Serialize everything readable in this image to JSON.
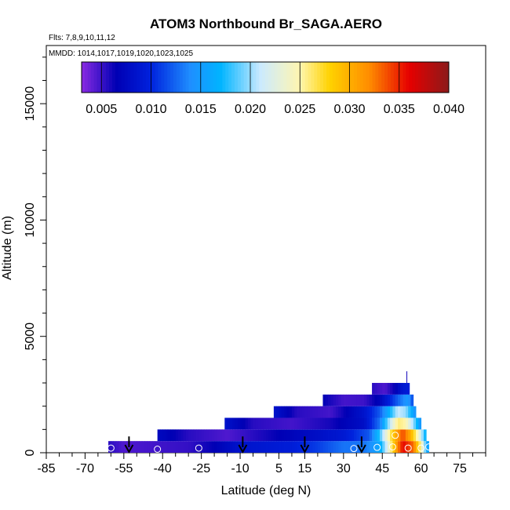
{
  "chart_data": {
    "type": "heatmap",
    "title": "ATOM3 Northbound Br_SAGA.AERO",
    "flights_note": "Flts: 7,8,9,10,11,12",
    "mmdd_note": "MMDD: 1014,1017,1019,1020,1023,1025",
    "xlabel": "Latitude (deg N)",
    "ylabel": "Altitude (m)",
    "xlim": [
      -85,
      85
    ],
    "ylim": [
      0,
      17500
    ],
    "x_ticks": [
      -85,
      -70,
      -55,
      -40,
      -25,
      -10,
      5,
      15,
      30,
      45,
      60,
      75
    ],
    "y_ticks": [
      0,
      5000,
      10000,
      15000
    ],
    "colorbar": {
      "range": [
        0.003,
        0.04
      ],
      "ticks": [
        "0.005",
        "0.010",
        "0.015",
        "0.020",
        "0.025",
        "0.030",
        "0.035",
        "0.040"
      ],
      "tick_values": [
        0.005,
        0.01,
        0.015,
        0.02,
        0.025,
        0.03,
        0.035,
        0.04
      ],
      "stops": [
        {
          "v": 0.003,
          "c": "#8a2be2"
        },
        {
          "v": 0.0065,
          "c": "#0000b4"
        },
        {
          "v": 0.01,
          "c": "#0022dd"
        },
        {
          "v": 0.014,
          "c": "#1f8fff"
        },
        {
          "v": 0.017,
          "c": "#00b4ff"
        },
        {
          "v": 0.021,
          "c": "#cbeaff"
        },
        {
          "v": 0.025,
          "c": "#fff6b0"
        },
        {
          "v": 0.028,
          "c": "#ffd200"
        },
        {
          "v": 0.032,
          "c": "#ff8c00"
        },
        {
          "v": 0.036,
          "c": "#e60000"
        },
        {
          "v": 0.04,
          "c": "#8b1a1a"
        }
      ]
    },
    "layers": [
      {
        "alt_bottom": 0,
        "alt_top": 500,
        "profile": [
          [
            -61,
            0.0055
          ],
          [
            -55,
            0.0045
          ],
          [
            -45,
            0.0048
          ],
          [
            -30,
            0.0052
          ],
          [
            -20,
            0.0065
          ],
          [
            -10,
            0.0085
          ],
          [
            0,
            0.009
          ],
          [
            10,
            0.0095
          ],
          [
            20,
            0.011
          ],
          [
            30,
            0.013
          ],
          [
            38,
            0.013
          ],
          [
            44,
            0.016
          ],
          [
            47,
            0.022
          ],
          [
            50,
            0.03
          ],
          [
            53,
            0.036
          ],
          [
            57,
            0.033
          ],
          [
            60,
            0.025
          ],
          [
            63,
            0.014
          ]
        ]
      },
      {
        "alt_bottom": 500,
        "alt_top": 1000,
        "profile": [
          [
            -42,
            0.0075
          ],
          [
            -30,
            0.0055
          ],
          [
            -15,
            0.0045
          ],
          [
            0,
            0.006
          ],
          [
            15,
            0.0075
          ],
          [
            30,
            0.009
          ],
          [
            40,
            0.012
          ],
          [
            44,
            0.018
          ],
          [
            47,
            0.024
          ],
          [
            50,
            0.03
          ],
          [
            53,
            0.034
          ],
          [
            56,
            0.03
          ],
          [
            59,
            0.024
          ],
          [
            62,
            0.016
          ]
        ]
      },
      {
        "alt_bottom": 1000,
        "alt_top": 1500,
        "profile": [
          [
            -16,
            0.0085
          ],
          [
            -5,
            0.0055
          ],
          [
            10,
            0.0048
          ],
          [
            25,
            0.006
          ],
          [
            38,
            0.008
          ],
          [
            44,
            0.013
          ],
          [
            48,
            0.021
          ],
          [
            51,
            0.026
          ],
          [
            54,
            0.025
          ],
          [
            57,
            0.02
          ],
          [
            60,
            0.014
          ]
        ]
      },
      {
        "alt_bottom": 1500,
        "alt_top": 2000,
        "profile": [
          [
            3,
            0.0085
          ],
          [
            12,
            0.0055
          ],
          [
            25,
            0.0048
          ],
          [
            38,
            0.0085
          ],
          [
            44,
            0.012
          ],
          [
            48,
            0.017
          ],
          [
            51,
            0.021
          ],
          [
            54,
            0.02
          ],
          [
            58,
            0.014
          ]
        ]
      },
      {
        "alt_bottom": 2000,
        "alt_top": 2500,
        "profile": [
          [
            22,
            0.0065
          ],
          [
            30,
            0.0048
          ],
          [
            38,
            0.005
          ],
          [
            44,
            0.007
          ],
          [
            48,
            0.01
          ],
          [
            52,
            0.013
          ],
          [
            55,
            0.015
          ],
          [
            57,
            0.011
          ]
        ]
      },
      {
        "alt_bottom": 2500,
        "alt_top": 3000,
        "profile": [
          [
            41,
            0.0055
          ],
          [
            46,
            0.0045
          ],
          [
            50,
            0.0065
          ],
          [
            53,
            0.009
          ],
          [
            55.5,
            0.0095
          ]
        ]
      }
    ],
    "spike": {
      "lat": 54.5,
      "alt_bottom": 3000,
      "alt_top": 3500,
      "value": 0.006
    },
    "arrows_lat": [
      -53,
      -9,
      15,
      37
    ],
    "arrow_alt_top": 700,
    "circles": [
      {
        "lat": -60,
        "alt": 200,
        "value": 0.006
      },
      {
        "lat": -42,
        "alt": 150,
        "value": 0.005
      },
      {
        "lat": -26,
        "alt": 200,
        "value": 0.005
      },
      {
        "lat": 34,
        "alt": 180,
        "value": 0.01
      },
      {
        "lat": 43,
        "alt": 230,
        "value": 0.012
      },
      {
        "lat": 49,
        "alt": 250,
        "value": 0.03
      },
      {
        "lat": 50,
        "alt": 750,
        "value": 0.034
      },
      {
        "lat": 55,
        "alt": 200,
        "value": 0.036
      },
      {
        "lat": 60,
        "alt": 200,
        "value": 0.025
      },
      {
        "lat": 63,
        "alt": 250,
        "value": 0.014
      }
    ]
  }
}
